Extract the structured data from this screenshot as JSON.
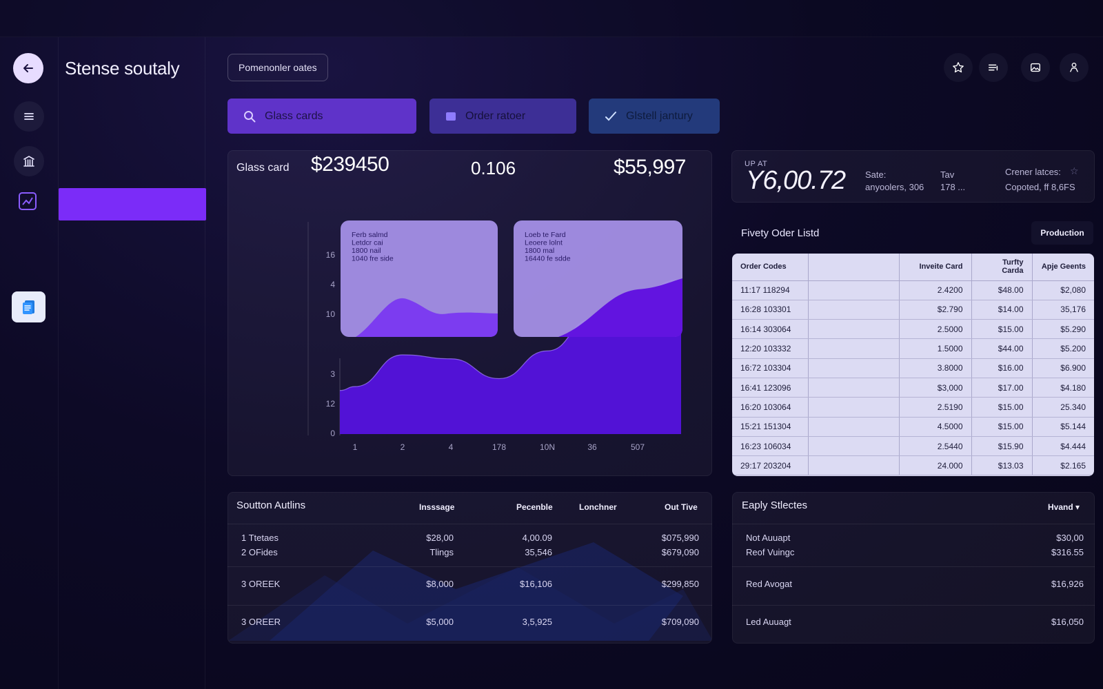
{
  "app": {
    "title": "Stense soutaly"
  },
  "breadcrumb": {
    "label": "Pomenonler oates"
  },
  "filters": [
    {
      "label": "Glass cards",
      "icon": "search-icon"
    },
    {
      "label": "Order ratoer",
      "icon": "folder-icon"
    },
    {
      "label": "Glstell jantury",
      "icon": "check-icon"
    }
  ],
  "nav_icons": [
    "back-arrow-icon",
    "menu-icon",
    "bank-icon",
    "chart-icon",
    "document-icon"
  ],
  "top_icons": [
    "star-icon",
    "list-icon",
    "image-icon",
    "user-icon"
  ],
  "stats": {
    "label": "Glass card",
    "value1": "$239450",
    "value2": "0.106",
    "value3": "$55,997"
  },
  "chart_data": {
    "type": "area",
    "x_tick_labels": [
      "1",
      "2",
      "4",
      "178",
      "10N",
      "36",
      "507"
    ],
    "y_tick_labels_lower": [
      "3",
      "12",
      "0"
    ],
    "y_tick_labels_upper": [
      "16",
      "4",
      "10"
    ],
    "series": [
      {
        "values": [
          12,
          20,
          19,
          14,
          21,
          29,
          36
        ]
      }
    ],
    "insets": [
      {
        "lines": [
          "Ferb salmd",
          "Letdcr cai",
          "1800 nail",
          "1040 fre side"
        ]
      },
      {
        "lines": [
          "Loeb te Fard",
          "Leoere lolnt",
          "1800 mal",
          "16440 fe sdde"
        ]
      }
    ],
    "colors": {
      "fill": "#5212d6",
      "inset": "#a48fe6"
    }
  },
  "kpi": {
    "label": "UP AT",
    "value": "Y6,00.72",
    "sate_label": "Sate:",
    "sate_value": "anyoolers, 306",
    "tav_label": "Tav",
    "tav_value": "178  ...",
    "right_label": "Crener latces:",
    "right_value": "Copoted, ff 8,6FS"
  },
  "order_list": {
    "title": "Fivety Oder Listd",
    "production_label": "Production",
    "columns": [
      "Order Codes",
      "",
      "Inveite Card",
      "Turfty Carda",
      "Apje Geents"
    ],
    "rows": [
      [
        "11:17 118294",
        "",
        "2.4200",
        "$48.00",
        "$2,080"
      ],
      [
        "16:28 103301",
        "",
        "$2.790",
        "$14.00",
        "35,176"
      ],
      [
        "16:14 303064",
        "",
        "2.5000",
        "$15.00",
        "$5.290"
      ],
      [
        "12:20 103332",
        "",
        "1.5000",
        "$44.00",
        "$5.200"
      ],
      [
        "16:72 103304",
        "",
        "3.8000",
        "$16.00",
        "$6.900"
      ],
      [
        "16:41 123096",
        "",
        "$3,000",
        "$17.00",
        "$4.180"
      ],
      [
        "16:20 103064",
        "",
        "2.5190",
        "$15.00",
        "25.340"
      ],
      [
        "15:21 151304",
        "",
        "4.5000",
        "$15.00",
        "$5.144"
      ],
      [
        "16:23 106034",
        "",
        "2.5440",
        "$15.90",
        "$4.444"
      ],
      [
        "29:17 203204",
        "",
        "24.000",
        "$13.03",
        "$2.165"
      ]
    ]
  },
  "bottom_left": {
    "title": "Soutton Autlins",
    "headers": [
      "Insssage",
      "Pecenble",
      "Lonchner",
      "Out Tive"
    ],
    "rows": [
      {
        "name": "1  Ttetaes",
        "c1": "$28,00",
        "c2": "4,00.09",
        "c3": "",
        "c4": "$075,990"
      },
      {
        "name": "2  OFides",
        "c1": "Tlings",
        "c2": "35,546",
        "c3": "",
        "c4": "$679,090"
      },
      {
        "name": "3  OREEK",
        "c1": "$8,000",
        "c2": "$16,106",
        "c3": "",
        "c4": "$299,850"
      },
      {
        "name": "3  OREER",
        "c1": "$5,000",
        "c2": "3,5,925",
        "c3": "",
        "c4": "$709,090"
      }
    ]
  },
  "bottom_right": {
    "title": "Eaply Stlectes",
    "dropdown_label": "Hvand",
    "rows": [
      {
        "name": "Not Auuapt",
        "value": "$30,00"
      },
      {
        "name": "Reof Vuingc",
        "value": "$316.55"
      },
      {
        "name": "Red Avogat",
        "value": "$16,926"
      },
      {
        "name": "Led Auuagt",
        "value": "$16,050"
      }
    ]
  }
}
